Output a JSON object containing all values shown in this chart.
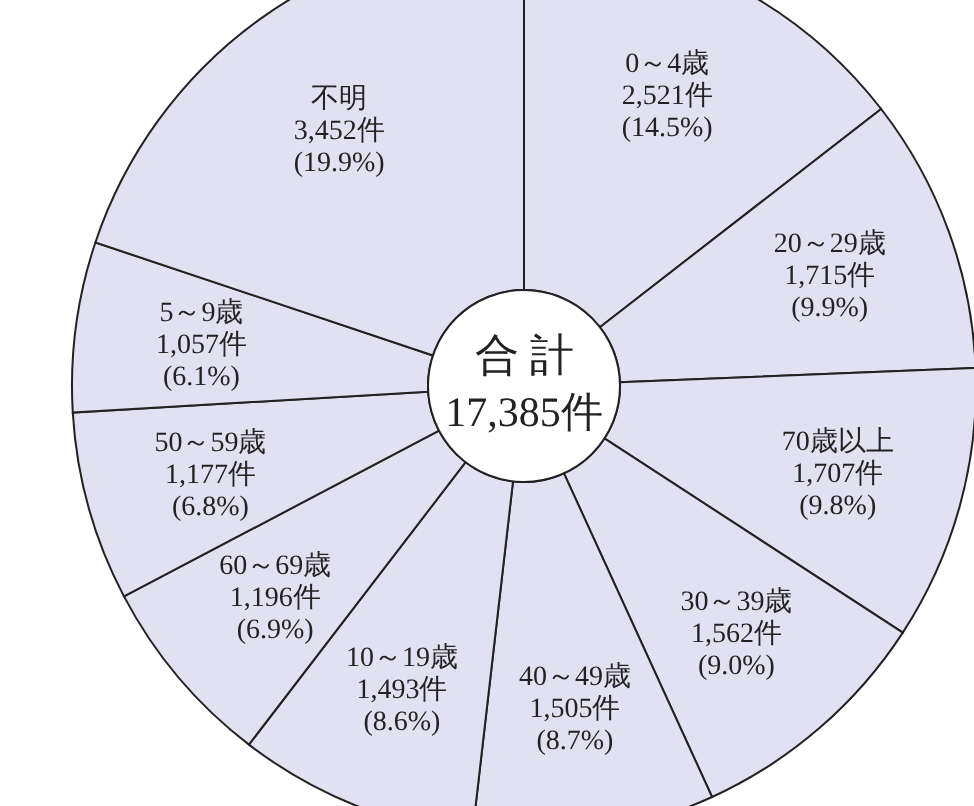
{
  "chart_data": {
    "type": "donut",
    "title": "合 計",
    "subtitle": "17,385件",
    "categories": [
      "0～4歳",
      "20～29歳",
      "70歳以上",
      "30～39歳",
      "40～49歳",
      "10～19歳",
      "60～69歳",
      "50～59歳",
      "5～9歳",
      "不明"
    ],
    "values": [
      2521,
      1715,
      1707,
      1562,
      1505,
      1493,
      1196,
      1177,
      1057,
      3452
    ],
    "value_labels": [
      "2,521件\n(14.5%)",
      "1,715件\n(9.9%)",
      "1,707件\n(9.8%)",
      "1,562件\n(9.0%)",
      "1,505件\n(8.7%)",
      "1,493件\n(8.6%)",
      "1,196件\n(6.9%)",
      "1,177件\n(6.8%)",
      "1,057件\n(6.1%)",
      "3,452件\n(19.9%)"
    ],
    "colors": [
      "#e1e1f2",
      "#e1e1f2",
      "#e1e1f2",
      "#e1e1f2",
      "#e1e1f2",
      "#e1e1f2",
      "#e1e1f2",
      "#e1e1f2",
      "#e1e1f2",
      "#e1e1f2"
    ]
  }
}
